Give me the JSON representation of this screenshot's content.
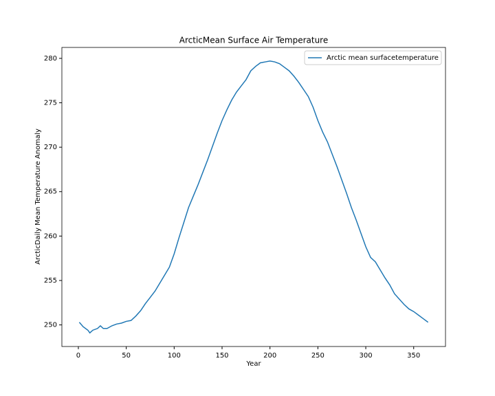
{
  "chart_data": {
    "type": "line",
    "title": "ArcticMean Surface Air Temperature",
    "xlabel": "Year",
    "ylabel": "ArcticDaily Mean Temperature Anomaly",
    "x": [
      1,
      5,
      10,
      12,
      15,
      20,
      23,
      26,
      30,
      35,
      40,
      45,
      50,
      55,
      60,
      65,
      70,
      75,
      80,
      85,
      90,
      95,
      100,
      105,
      110,
      115,
      120,
      125,
      130,
      135,
      140,
      145,
      150,
      155,
      160,
      165,
      170,
      175,
      180,
      185,
      190,
      195,
      200,
      205,
      210,
      215,
      220,
      225,
      230,
      235,
      240,
      245,
      250,
      255,
      260,
      265,
      270,
      275,
      280,
      285,
      290,
      295,
      300,
      305,
      310,
      315,
      320,
      325,
      330,
      335,
      340,
      345,
      350,
      355,
      360,
      365
    ],
    "series": [
      {
        "name": "Arctic mean surfacetemperature",
        "color": "#1f77b4",
        "values": [
          250.3,
          249.8,
          249.4,
          249.1,
          249.4,
          249.6,
          249.9,
          249.6,
          249.6,
          249.9,
          250.1,
          250.2,
          250.4,
          250.5,
          251.0,
          251.6,
          252.4,
          253.1,
          253.8,
          254.7,
          255.6,
          256.5,
          258.0,
          259.8,
          261.5,
          263.2,
          264.5,
          265.8,
          267.2,
          268.6,
          270.1,
          271.6,
          273.0,
          274.2,
          275.3,
          276.2,
          276.9,
          277.6,
          278.6,
          279.1,
          279.5,
          279.6,
          279.7,
          279.6,
          279.4,
          279.0,
          278.6,
          278.0,
          277.3,
          276.5,
          275.7,
          274.5,
          273.0,
          271.7,
          270.6,
          269.2,
          267.8,
          266.3,
          264.8,
          263.2,
          261.8,
          260.3,
          258.8,
          257.6,
          257.1,
          256.2,
          255.3,
          254.5,
          253.5,
          252.9,
          252.3,
          251.8,
          251.5,
          251.1,
          250.7,
          250.3
        ]
      }
    ],
    "xlim": [
      -17.2,
      383.2
    ],
    "ylim": [
      247.57,
      281.23
    ],
    "xticks": [
      0,
      50,
      100,
      150,
      200,
      250,
      300,
      350
    ],
    "yticks": [
      250,
      255,
      260,
      265,
      270,
      275,
      280
    ],
    "legend": "upper right",
    "grid": false
  }
}
